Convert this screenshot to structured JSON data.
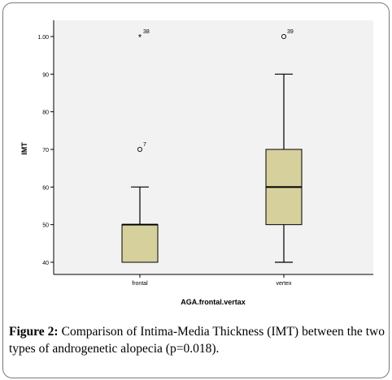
{
  "chart_data": {
    "type": "boxplot",
    "xlabel": "AGA.frontal.vertax",
    "ylabel": "IMT",
    "yticks": [
      "40",
      "50",
      "60",
      "70",
      "80",
      "90",
      "1.00"
    ],
    "ytick_values": [
      0.4,
      0.5,
      0.6,
      0.7,
      0.8,
      0.9,
      1.0
    ],
    "ylim": [
      0.37,
      1.04
    ],
    "categories": [
      "frontal",
      "vertex"
    ],
    "boxes": [
      {
        "category": "frontal",
        "whisker_low": 0.4,
        "q1": 0.4,
        "median": 0.5,
        "q3": 0.5,
        "whisker_high": 0.6,
        "outliers": [
          {
            "value": 0.7,
            "label": "7",
            "symbol": "circle"
          }
        ],
        "extremes": [
          {
            "value": 1.0,
            "label": "38",
            "symbol": "star"
          }
        ]
      },
      {
        "category": "vertex",
        "whisker_low": 0.4,
        "q1": 0.5,
        "median": 0.6,
        "q3": 0.7,
        "whisker_high": 0.9,
        "outliers": [
          {
            "value": 1.0,
            "label": "39",
            "symbol": "circle"
          }
        ],
        "extremes": []
      }
    ],
    "box_color": "#d6d09c",
    "background": "#f2f2f2",
    "grid": false
  },
  "caption": {
    "label": "Figure 2:",
    "text": " Comparison of Intima-Media Thickness (IMT) between the two types of androgenetic alopecia (p=0.018)."
  }
}
